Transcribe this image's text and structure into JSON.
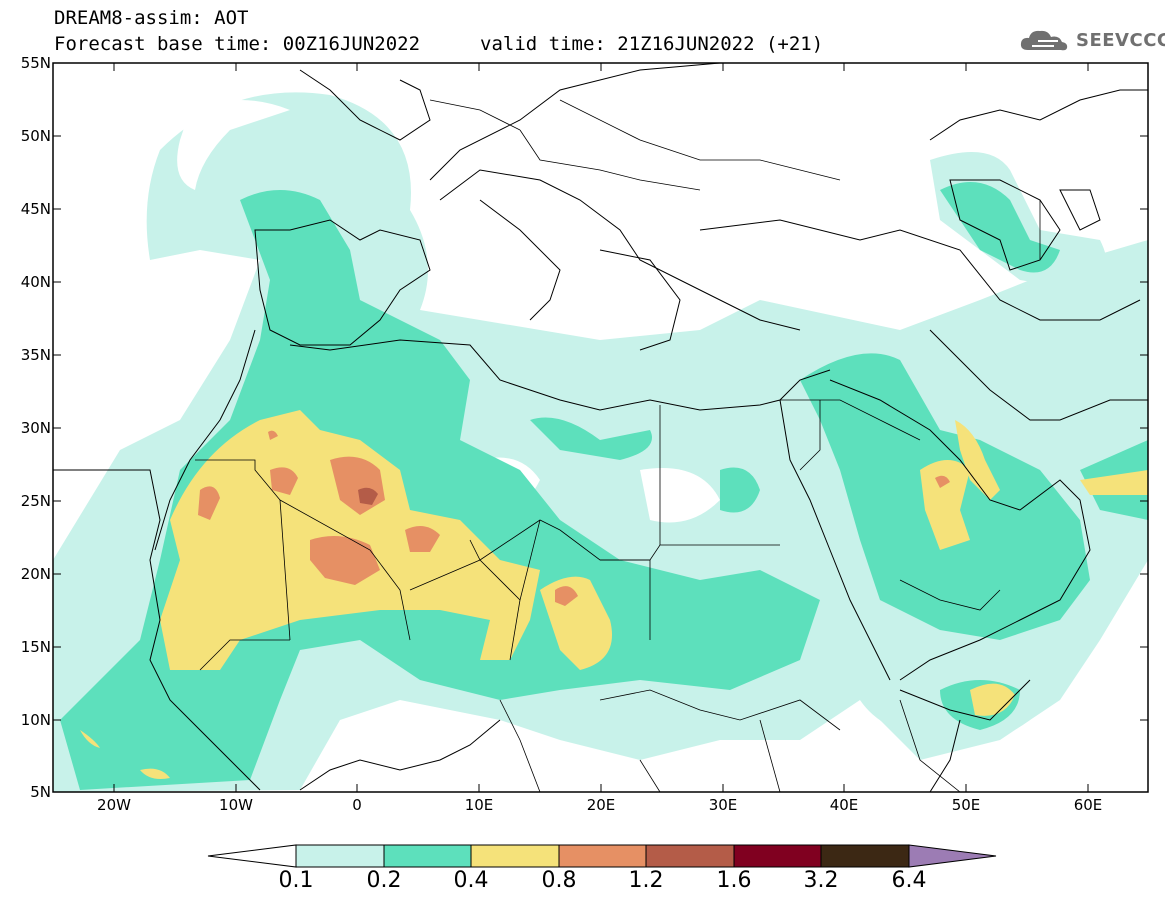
{
  "header": {
    "line1": "DREAM8-assim: AOT",
    "line2_left": "Forecast base time: 00Z16JUN2022",
    "line2_right": "valid time: 21Z16JUN2022 (+21)"
  },
  "logo": {
    "text": "SEEVCCC",
    "icon": "cloud-icon"
  },
  "axes": {
    "lat_labels": [
      "55N",
      "50N",
      "45N",
      "40N",
      "35N",
      "30N",
      "25N",
      "20N",
      "15N",
      "10N",
      "5N"
    ],
    "lon_labels": [
      "20W",
      "10W",
      "0",
      "10E",
      "20E",
      "30E",
      "40E",
      "50E",
      "60E"
    ],
    "lat_range": [
      5,
      55
    ],
    "lon_range": [
      -25,
      65
    ]
  },
  "colorbar": {
    "labels": [
      "0.1",
      "0.2",
      "0.4",
      "0.8",
      "1.2",
      "1.6",
      "3.2",
      "6.4"
    ],
    "colors": [
      "#c8f2ea",
      "#5de0bc",
      "#f5e27a",
      "#e69064",
      "#b45c48",
      "#800020",
      "#3c2814",
      "#9c7cb4"
    ],
    "under_color": "#ffffff"
  },
  "field_colors": {
    "level1": "#c8f2ea",
    "level2": "#5de0bc",
    "level3": "#f5e27a",
    "level4": "#e69064",
    "level5": "#b45c48"
  }
}
